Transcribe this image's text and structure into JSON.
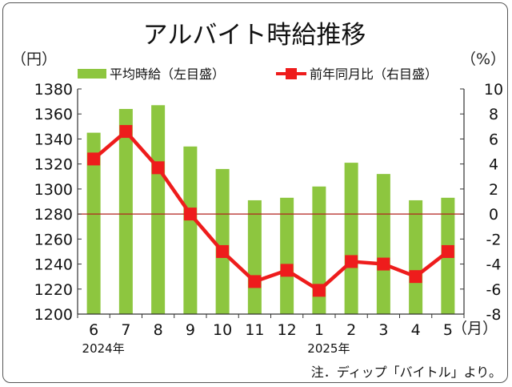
{
  "chart_data": {
    "type": "bar",
    "title": "アルバイト時給推移",
    "left_unit": "（円）",
    "right_unit": "（%）",
    "month_unit": "（月）",
    "categories": [
      "6",
      "7",
      "8",
      "9",
      "10",
      "11",
      "12",
      "1",
      "2",
      "3",
      "4",
      "5"
    ],
    "year_labels": [
      {
        "label": "2024年",
        "category_index": 0
      },
      {
        "label": "2025年",
        "category_index": 7
      }
    ],
    "series": [
      {
        "name": "平均時給（左目盛）",
        "type": "bar",
        "axis": "left",
        "color": "#8dc63f",
        "values": [
          1345,
          1364,
          1367,
          1334,
          1316,
          1291,
          1293,
          1302,
          1321,
          1312,
          1291,
          1293
        ]
      },
      {
        "name": "前年同月比（右目盛）",
        "type": "line",
        "axis": "right",
        "color": "#ee1c1c",
        "values": [
          4.4,
          6.6,
          3.7,
          0.0,
          -3.0,
          -5.4,
          -4.5,
          -6.1,
          -3.8,
          -4.0,
          -5.0,
          -3.0
        ]
      }
    ],
    "y_left": {
      "min": 1200,
      "max": 1380,
      "ticks": [
        1200,
        1220,
        1240,
        1260,
        1280,
        1300,
        1320,
        1340,
        1360,
        1380
      ]
    },
    "y_right": {
      "min": -8,
      "max": 10,
      "ticks": [
        -8,
        -6,
        -4,
        -2,
        0,
        2,
        4,
        6,
        8,
        10
      ]
    },
    "reference_line": {
      "right_value": 0,
      "color": "#b2221e"
    },
    "grid": false,
    "legend_position": "top",
    "note": "注．ディップ「バイトル」より。"
  }
}
